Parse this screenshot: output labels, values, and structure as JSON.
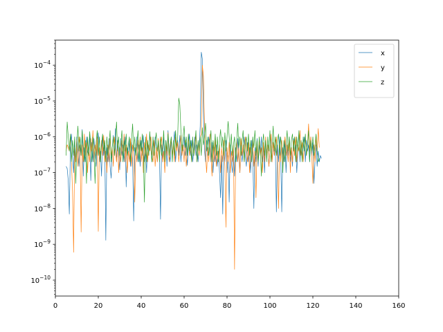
{
  "chart_data": {
    "type": "line",
    "title": "",
    "xlabel": "",
    "ylabel": "",
    "xlim": [
      0,
      160
    ],
    "ylim": [
      3.6e-11,
      0.0005
    ],
    "yscale": "log",
    "grid": false,
    "legend_position": "top-right",
    "x_ticks": [
      0,
      20,
      40,
      60,
      80,
      100,
      120,
      140,
      160
    ],
    "y_ticks": [
      {
        "value": 1e-10,
        "mantissa": "10",
        "exponent": "−10"
      },
      {
        "value": 1e-09,
        "mantissa": "10",
        "exponent": "−9"
      },
      {
        "value": 1e-08,
        "mantissa": "10",
        "exponent": "−8"
      },
      {
        "value": 1e-07,
        "mantissa": "10",
        "exponent": "−7"
      },
      {
        "value": 1e-06,
        "mantissa": "10",
        "exponent": "−6"
      },
      {
        "value": 1e-05,
        "mantissa": "10",
        "exponent": "−5"
      },
      {
        "value": 0.0001,
        "mantissa": "10",
        "exponent": "−4"
      }
    ],
    "x_start": 5,
    "x_step": 0.5,
    "series": [
      {
        "name": "x",
        "color": "#1f77b4",
        "values": [
          1.5e-07,
          1.3e-07,
          6e-08,
          7e-09,
          5e-07,
          1.2e-06,
          3e-07,
          1e-07,
          8e-07,
          2e-07,
          1e-06,
          4e-07,
          1.5e-07,
          6e-07,
          3e-07,
          1.6e-06,
          8e-08,
          5e-07,
          2e-07,
          1e-06,
          4e-07,
          3e-07,
          1.2e-06,
          6e-08,
          7e-07,
          2e-07,
          9e-07,
          3e-07,
          1.5e-07,
          6e-07,
          1.3e-06,
          2e-07,
          4e-07,
          8e-08,
          1e-06,
          3e-07,
          6e-07,
          1.3e-09,
          5e-07,
          2e-07,
          9e-07,
          1.5e-07,
          7e-08,
          5e-07,
          1.1e-06,
          3e-07,
          1.7e-06,
          2e-07,
          8e-07,
          4e-07,
          1.2e-07,
          9e-07,
          3e-07,
          6e-07,
          2e-07,
          1e-06,
          4e-08,
          5e-07,
          3e-07,
          8e-07,
          1.5e-07,
          7e-07,
          2e-07,
          4.5e-09,
          5e-07,
          3e-07,
          1e-06,
          2e-07,
          6e-07,
          1.5e-07,
          8e-07,
          3e-07,
          1.1e-06,
          2e-07,
          5e-07,
          1e-07,
          7e-07,
          3e-07,
          1.2e-06,
          5e-07,
          2e-07,
          8e-07,
          3e-07,
          1e-06,
          4e-07,
          2e-07,
          7e-07,
          3e-07,
          5e-09,
          6e-07,
          2e-07,
          1e-06,
          3e-07,
          8e-07,
          1.5e-07,
          1.5e-06,
          4e-07,
          2e-07,
          9e-07,
          3e-07,
          6e-07,
          1.4e-06,
          2e-07,
          5e-07,
          8e-07,
          3e-07,
          1.1e-06,
          2e-07,
          6e-07,
          4e-07,
          1e-06,
          3e-07,
          7e-07,
          1.6e-07,
          5e-07,
          1.2e-06,
          3e-07,
          8e-07,
          2e-07,
          4e-07,
          1e-06,
          3e-07,
          6e-07,
          2e-07,
          5e-07,
          2e-06,
          0.00023,
          0.00015,
          5e-06,
          4e-07,
          2e-07,
          8e-07,
          3e-07,
          1e-06,
          5e-07,
          2e-07,
          7e-07,
          1e-07,
          5e-07,
          2e-07,
          6e-07,
          1.5e-07,
          4e-07,
          1e-07,
          2e-08,
          3e-07,
          7e-09,
          5e-07,
          2e-07,
          8e-07,
          1e-07,
          3e-07,
          1.5e-08,
          6e-07,
          2e-07,
          1e-07,
          4e-07,
          8e-08,
          5e-07,
          2e-07,
          9e-07,
          3e-07,
          1e-07,
          6e-07,
          2e-07,
          4e-07,
          1e-06,
          3e-07,
          1.5e-07,
          7e-07,
          2e-07,
          5e-07,
          1e-07,
          8e-07,
          3e-07,
          1e-08,
          5e-07,
          2e-07,
          9e-07,
          1.5e-07,
          6e-07,
          3e-07,
          1e-06,
          2e-07,
          5e-07,
          1e-07,
          8e-07,
          3e-07,
          6e-07,
          1.5e-07,
          4e-07,
          1.1e-06,
          2e-07,
          7e-07,
          3e-07,
          5e-07,
          8e-09,
          6e-07,
          2e-07,
          1e-06,
          3e-07,
          8e-09,
          5e-07,
          2e-07,
          8e-07,
          1e-07,
          6e-07,
          3e-07,
          1e-06,
          2e-07,
          5e-07,
          1.5e-07,
          9e-07,
          3e-07,
          6e-07,
          1e-07,
          4e-07,
          1.2e-06,
          2e-07,
          7e-07,
          3e-07,
          5e-07,
          1e-06,
          2e-07,
          8e-07,
          4e-07,
          6e-07,
          2e-07,
          1e-06,
          3e-07,
          7e-07,
          5e-08,
          2e-07,
          6e-07,
          1.5e-07,
          4e-07,
          2e-07,
          3e-07,
          2.5e-07
        ]
      },
      {
        "name": "y",
        "color": "#ff7f0e",
        "values": [
          4e-07,
          6e-07,
          5e-07,
          4e-07,
          1e-06,
          2e-07,
          3e-08,
          6e-10,
          5e-07,
          2e-07,
          8e-07,
          1.5e-07,
          1e-06,
          4e-07,
          2.2e-09,
          6e-07,
          2e-07,
          1.2e-06,
          3e-07,
          7e-07,
          1e-07,
          5e-07,
          2e-07,
          9e-07,
          4e-07,
          1.5e-06,
          2e-07,
          6e-07,
          3e-07,
          1e-06,
          2.3e-09,
          5e-07,
          2e-07,
          8e-07,
          3e-07,
          1.1e-06,
          2e-07,
          4e-07,
          1e-07,
          6e-07,
          2e-07,
          9e-07,
          3e-07,
          5e-07,
          1.5e-07,
          1e-06,
          4e-07,
          2e-07,
          7e-07,
          1e-07,
          5e-07,
          2e-07,
          8e-07,
          3e-07,
          1.2e-06,
          2e-07,
          6e-07,
          1e-07,
          4e-07,
          2e-07,
          9e-07,
          1.5e-07,
          6e-07,
          3e-07,
          1.5e-08,
          5e-07,
          2e-07,
          8e-07,
          3e-07,
          1e-06,
          2e-07,
          5e-07,
          1e-07,
          7e-07,
          3e-07,
          1.2e-06,
          2e-07,
          6e-07,
          4e-07,
          1e-06,
          3e-07,
          2e-07,
          8e-07,
          1.5e-07,
          5e-07,
          2e-07,
          9e-07,
          3e-07,
          6e-07,
          1e-06,
          2e-07,
          4e-07,
          1e-07,
          7e-07,
          3e-07,
          1.3e-06,
          2e-07,
          5e-07,
          9e-07,
          3e-07,
          6e-07,
          2e-07,
          1e-06,
          4e-07,
          7e-07,
          2e-07,
          5e-07,
          1.1e-06,
          3e-07,
          6e-07,
          2e-07,
          8e-07,
          1.5e-07,
          4e-07,
          1e-06,
          3e-07,
          6e-07,
          2e-07,
          9e-07,
          3e-07,
          5e-07,
          1.2e-06,
          2e-07,
          7e-07,
          3e-07,
          1e-06,
          1.2e-06,
          0.0001,
          5e-05,
          2e-06,
          3e-07,
          1e-07,
          5e-07,
          2e-07,
          1.2e-06,
          3e-07,
          8e-08,
          6e-07,
          2e-07,
          9e-07,
          1.5e-07,
          4e-07,
          2e-07,
          6e-07,
          1e-07,
          5e-07,
          2e-07,
          8e-07,
          1.5e-07,
          3e-09,
          5e-07,
          2e-07,
          7e-07,
          1e-07,
          4e-07,
          2e-07,
          6e-07,
          2e-10,
          3e-07,
          8e-07,
          2e-07,
          5e-07,
          1e-07,
          9e-07,
          3e-07,
          6e-07,
          2e-07,
          1e-06,
          4e-07,
          2e-07,
          7e-07,
          1e-07,
          5e-07,
          2e-07,
          8e-07,
          1.5e-07,
          4e-07,
          2e-08,
          6e-07,
          2e-07,
          9e-07,
          3e-07,
          5e-07,
          1e-07,
          7e-07,
          2e-07,
          1e-06,
          3e-07,
          6e-07,
          1.5e-07,
          4e-07,
          1.2e-06,
          2e-07,
          7e-07,
          3e-07,
          5e-07,
          1e-06,
          2e-07,
          1e-08,
          6e-07,
          2e-07,
          8e-07,
          1.5e-07,
          4e-07,
          1e-06,
          3e-07,
          6e-07,
          2e-07,
          9e-07,
          1e-07,
          5e-07,
          2e-07,
          8e-07,
          3e-07,
          1e-06,
          2e-07,
          6e-07,
          4e-07,
          1.5e-06,
          3e-07,
          7e-07,
          2e-07,
          5e-07,
          1e-06,
          3e-07,
          6e-07,
          2.3e-06,
          4e-07,
          1e-06,
          3e-07,
          5e-08,
          6e-07,
          2e-07,
          1e-06,
          4e-07,
          1.7e-06,
          5e-07
        ]
      },
      {
        "name": "z",
        "color": "#2ca02c",
        "values": [
          3e-07,
          2.6e-06,
          1e-06,
          4e-07,
          1.2e-06,
          2e-07,
          8e-07,
          3e-07,
          1e-06,
          5e-08,
          6e-07,
          2e-06,
          4e-07,
          1e-06,
          3e-07,
          1.5e-06,
          5e-07,
          2e-07,
          8e-07,
          5e-08,
          1e-06,
          3e-07,
          1.4e-06,
          6e-07,
          2e-07,
          1e-06,
          4e-07,
          5e-08,
          7e-07,
          1.5e-06,
          3e-07,
          1e-06,
          2e-07,
          6e-07,
          1.2e-06,
          4e-07,
          8e-07,
          2e-07,
          1e-06,
          3e-07,
          6e-07,
          1.5e-06,
          2e-07,
          5e-07,
          1e-06,
          3e-07,
          8e-07,
          2.6e-06,
          4e-07,
          1e-06,
          3e-07,
          6e-07,
          1.5e-06,
          2e-07,
          8e-07,
          4e-07,
          1.2e-06,
          3e-07,
          6e-07,
          1e-06,
          2e-07,
          8e-07,
          2.3e-06,
          4e-07,
          1e-06,
          3e-07,
          6e-07,
          1.5e-06,
          2e-07,
          8e-07,
          4e-07,
          1.2e-06,
          3e-07,
          1.5e-08,
          1e-06,
          2e-07,
          8e-07,
          3e-07,
          1.4e-06,
          5e-07,
          2e-07,
          1e-06,
          3e-07,
          7e-07,
          1.3e-06,
          4e-07,
          8e-07,
          2e-07,
          1e-06,
          3e-07,
          5e-07,
          1.5e-06,
          2e-07,
          8e-07,
          4e-07,
          1.2e-06,
          3e-07,
          6e-07,
          1e-06,
          2e-07,
          8e-07,
          3e-07,
          1.5e-06,
          5e-07,
          1e-06,
          1.2e-05,
          8e-06,
          1.5e-06,
          4e-07,
          1e-06,
          2e-06,
          5e-07,
          1e-06,
          3e-07,
          1.2e-06,
          4e-07,
          8e-07,
          2e-07,
          1e-06,
          3e-07,
          6e-07,
          1.5e-06,
          2e-07,
          8e-07,
          4e-07,
          1e-06,
          3e-07,
          1.8e-06,
          6e-07,
          1e-06,
          2.4e-06,
          4e-07,
          1e-06,
          3e-07,
          6e-07,
          1.5e-06,
          2e-07,
          8e-07,
          4e-07,
          1.2e-06,
          3e-07,
          1e-06,
          2e-07,
          8e-07,
          1.6e-06,
          5e-07,
          1e-06,
          3e-07,
          1.3e-06,
          4e-07,
          1e-06,
          2.7e-06,
          1e-06,
          4e-07,
          1.2e-06,
          3e-07,
          6e-07,
          1e-06,
          2e-07,
          8e-07,
          2.4e-06,
          5e-07,
          1e-06,
          3e-07,
          8e-07,
          1.5e-06,
          2e-07,
          6e-07,
          1e-06,
          4e-07,
          1.2e-06,
          3e-07,
          8e-07,
          2e-07,
          1e-06,
          5e-07,
          1.5e-06,
          3e-07,
          8e-07,
          2e-07,
          1e-06,
          4e-07,
          8e-08,
          6e-07,
          1.2e-06,
          3e-07,
          8e-07,
          2e-07,
          1e-06,
          4e-07,
          1.5e-06,
          2e-07,
          6e-07,
          2e-06,
          4e-07,
          1e-06,
          3e-07,
          8e-07,
          1.2e-06,
          3e-07,
          1e-06,
          5e-07,
          1e-07,
          8e-07,
          2e-07,
          6e-07,
          1.5e-06,
          4e-07,
          1e-06,
          3e-07,
          8e-07,
          1.2e-06,
          4e-07,
          1e-06,
          2e-07,
          1e-06,
          4e-07,
          1.5e-06,
          3e-07,
          8e-07,
          2e-07,
          1e-06,
          4e-07,
          1.2e-06,
          3e-07,
          6e-07,
          1.5e-06,
          2e-07,
          8e-07,
          4e-07,
          1e-06,
          3e-07,
          6e-07,
          1.2e-06,
          4e-07,
          2e-07,
          2.5e-07
        ]
      }
    ]
  }
}
